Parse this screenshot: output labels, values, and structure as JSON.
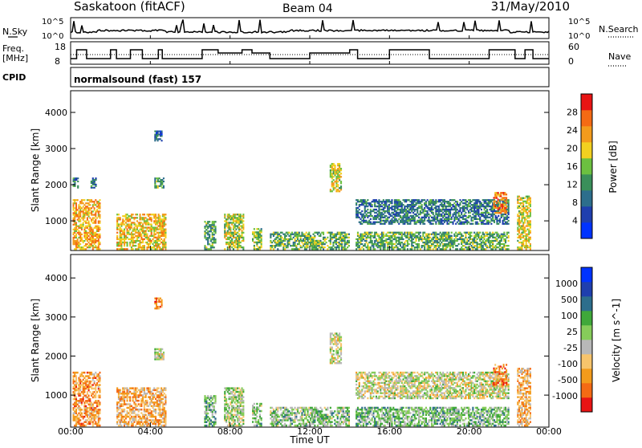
{
  "header": {
    "site": "Saskatoon (fitACF)",
    "beam": "Beam 04",
    "date": "31/May/2010"
  },
  "noise_panel": {
    "left_label": "N.Sky",
    "right_label": "N.Search",
    "left_ticks": [
      "10^5",
      "10^0"
    ],
    "right_ticks": [
      "10^5",
      "10^0"
    ]
  },
  "freq_panel": {
    "left_label_1": "Freq.",
    "left_label_2": "[MHz]",
    "right_label": "Nave",
    "left_ticks": [
      "18",
      "8"
    ],
    "right_ticks": [
      "60",
      "0"
    ]
  },
  "cpid": {
    "label": "CPID",
    "program": "normalsound (fast) 157"
  },
  "xaxis": {
    "label": "Time UT",
    "ticks": [
      "00:00",
      "04:00",
      "08:00",
      "12:00",
      "16:00",
      "20:00",
      "00:00"
    ]
  },
  "yaxis": {
    "label": "Slant Range [km]",
    "ticks": [
      "1000",
      "2000",
      "3000",
      "4000"
    ]
  },
  "colors": {
    "power_scale": [
      "#0033ff",
      "#1f3fae",
      "#2d6e8c",
      "#3a8f5a",
      "#6cc040",
      "#f2d020",
      "#f39b1c",
      "#f46a14",
      "#e81414"
    ],
    "velocity_scale": [
      "#e81414",
      "#f46a14",
      "#f39b1c",
      "#f7c46c",
      "#b8b8b8",
      "#86cc5a",
      "#3fa83a",
      "#2d6e8c",
      "#1f3fae",
      "#0033ff"
    ]
  },
  "chart_data": [
    {
      "type": "heatmap",
      "name": "power",
      "xlabel": "Time UT",
      "ylabel": "Slant Range [km]",
      "xlim": [
        0,
        24
      ],
      "ylim": [
        180,
        4600
      ],
      "colorbar": {
        "label": "Power [dB]",
        "range": [
          0,
          32
        ],
        "ticks": [
          "4",
          "8",
          "12",
          "16",
          "20",
          "24",
          "28"
        ]
      },
      "echo_regions": [
        {
          "t0": 0.1,
          "t1": 1.5,
          "r0": 200,
          "r1": 1600,
          "level": 0.7
        },
        {
          "t0": 0.1,
          "t1": 0.4,
          "r0": 1900,
          "r1": 2200,
          "level": 0.35
        },
        {
          "t0": 1.0,
          "t1": 1.3,
          "r0": 1900,
          "r1": 2200,
          "level": 0.3
        },
        {
          "t0": 2.3,
          "t1": 4.8,
          "r0": 200,
          "r1": 1200,
          "level": 0.65
        },
        {
          "t0": 4.2,
          "t1": 4.7,
          "r0": 1900,
          "r1": 2200,
          "level": 0.4
        },
        {
          "t0": 4.2,
          "t1": 4.6,
          "r0": 3200,
          "r1": 3500,
          "level": 0.25
        },
        {
          "t0": 6.7,
          "t1": 7.3,
          "r0": 200,
          "r1": 1000,
          "level": 0.4
        },
        {
          "t0": 7.7,
          "t1": 8.7,
          "r0": 200,
          "r1": 1200,
          "level": 0.55
        },
        {
          "t0": 9.1,
          "t1": 9.6,
          "r0": 200,
          "r1": 800,
          "level": 0.5
        },
        {
          "t0": 10.0,
          "t1": 14.0,
          "r0": 200,
          "r1": 700,
          "level": 0.45
        },
        {
          "t0": 13.0,
          "t1": 13.6,
          "r0": 1800,
          "r1": 2600,
          "level": 0.6
        },
        {
          "t0": 14.3,
          "t1": 22.0,
          "r0": 900,
          "r1": 1600,
          "level": 0.3
        },
        {
          "t0": 14.3,
          "t1": 22.0,
          "r0": 200,
          "r1": 700,
          "level": 0.45
        },
        {
          "t0": 21.2,
          "t1": 21.9,
          "r0": 1200,
          "r1": 1800,
          "level": 0.8
        },
        {
          "t0": 22.4,
          "t1": 23.1,
          "r0": 200,
          "r1": 1700,
          "level": 0.6
        }
      ]
    },
    {
      "type": "heatmap",
      "name": "velocity",
      "xlabel": "Time UT",
      "ylabel": "Slant Range [km]",
      "xlim": [
        0,
        24
      ],
      "ylim": [
        180,
        4600
      ],
      "colorbar": {
        "label": "Velocity [m s^-1]",
        "ticks": [
          "1000",
          "500",
          "100",
          "25",
          "-25",
          "-100",
          "-500",
          "-1000"
        ]
      },
      "echo_regions": [
        {
          "t0": 0.1,
          "t1": 1.5,
          "r0": 200,
          "r1": 1600,
          "level": 0.25
        },
        {
          "t0": 2.3,
          "t1": 4.8,
          "r0": 200,
          "r1": 1200,
          "level": 0.3
        },
        {
          "t0": 4.2,
          "t1": 4.7,
          "r0": 1900,
          "r1": 2200,
          "level": 0.45
        },
        {
          "t0": 4.2,
          "t1": 4.6,
          "r0": 3200,
          "r1": 3500,
          "level": 0.2
        },
        {
          "t0": 6.7,
          "t1": 7.3,
          "r0": 200,
          "r1": 1000,
          "level": 0.6
        },
        {
          "t0": 7.7,
          "t1": 8.7,
          "r0": 200,
          "r1": 1200,
          "level": 0.5
        },
        {
          "t0": 9.1,
          "t1": 9.6,
          "r0": 200,
          "r1": 800,
          "level": 0.55
        },
        {
          "t0": 10.0,
          "t1": 14.0,
          "r0": 200,
          "r1": 700,
          "level": 0.55
        },
        {
          "t0": 13.0,
          "t1": 13.6,
          "r0": 1800,
          "r1": 2600,
          "level": 0.45
        },
        {
          "t0": 14.3,
          "t1": 22.0,
          "r0": 900,
          "r1": 1600,
          "level": 0.45
        },
        {
          "t0": 14.3,
          "t1": 22.0,
          "r0": 200,
          "r1": 700,
          "level": 0.58
        },
        {
          "t0": 21.2,
          "t1": 21.9,
          "r0": 1200,
          "r1": 1800,
          "level": 0.2
        },
        {
          "t0": 22.4,
          "t1": 23.1,
          "r0": 200,
          "r1": 1700,
          "level": 0.3
        }
      ]
    }
  ]
}
